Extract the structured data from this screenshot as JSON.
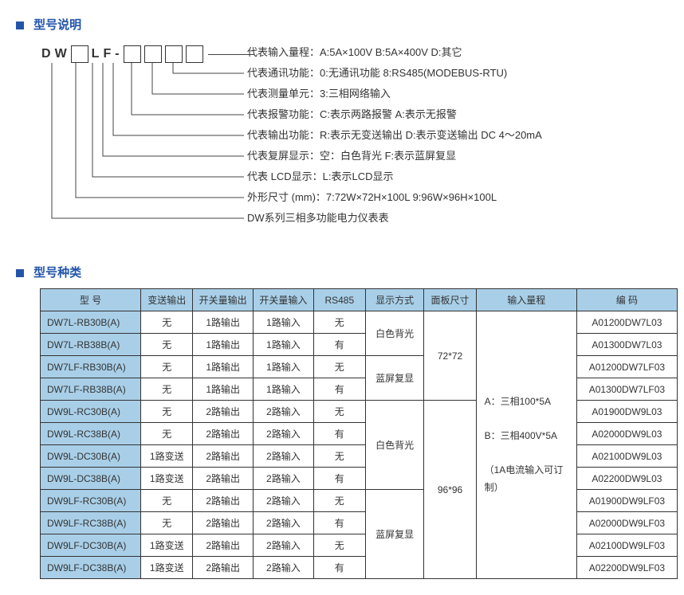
{
  "sections": {
    "explanation": "型号说明",
    "kinds": "型号种类"
  },
  "code_parts": {
    "p1": "D",
    "p2": "W",
    "p5": "L",
    "p6": "F",
    "dash": "-"
  },
  "desc": [
    "代表输入量程：A:5A×100V    B:5A×400V    D:其它",
    "代表通讯功能：0:无通讯功能    8:RS485(MODEBUS-RTU)",
    "代表测量单元：3:三相网络输入",
    "代表报警功能：C:表示两路报警    A:表示无报警",
    "代表输出功能：R:表示无变送输出    D:表示变送输出 DC 4～20mA",
    "代表复屏显示：空：白色背光    F:表示蓝屏复显",
    "代表 LCD显示：L:表示LCD显示",
    "外形尺寸 (mm)：7:72W×72H×100L    9:96W×96H×100L",
    "DW系列三相多功能电力仪表表"
  ],
  "headers": [
    "型    号",
    "变送输出",
    "开关量输出",
    "开关量输入",
    "RS485",
    "显示方式",
    "面板尺寸",
    "输入量程",
    "编    码"
  ],
  "range_lines": [
    "A：三相100*5A",
    "B：三相400V*5A",
    "（1A电流输入可订制）"
  ],
  "rows": [
    {
      "model": "DW7L-RB30B(A)",
      "trans": "无",
      "out": "1路输出",
      "in": "1路输入",
      "rs": "无",
      "code": "A01200DW7L03"
    },
    {
      "model": "DW7L-RB38B(A)",
      "trans": "无",
      "out": "1路输出",
      "in": "1路输入",
      "rs": "有",
      "code": "A01300DW7L03"
    },
    {
      "model": "DW7LF-RB30B(A)",
      "trans": "无",
      "out": "1路输出",
      "in": "1路输入",
      "rs": "无",
      "code": "A01200DW7LF03"
    },
    {
      "model": "DW7LF-RB38B(A)",
      "trans": "无",
      "out": "1路输出",
      "in": "1路输入",
      "rs": "有",
      "code": "A01300DW7LF03"
    },
    {
      "model": "DW9L-RC30B(A)",
      "trans": "无",
      "out": "2路输出",
      "in": "2路输入",
      "rs": "无",
      "code": "A01900DW9L03"
    },
    {
      "model": "DW9L-RC38B(A)",
      "trans": "无",
      "out": "2路输出",
      "in": "2路输入",
      "rs": "有",
      "code": "A02000DW9L03"
    },
    {
      "model": "DW9L-DC30B(A)",
      "trans": "1路变送",
      "out": "2路输出",
      "in": "2路输入",
      "rs": "无",
      "code": "A02100DW9L03"
    },
    {
      "model": "DW9L-DC38B(A)",
      "trans": "1路变送",
      "out": "2路输出",
      "in": "2路输入",
      "rs": "有",
      "code": "A02200DW9L03"
    },
    {
      "model": "DW9LF-RC30B(A)",
      "trans": "无",
      "out": "2路输出",
      "in": "2路输入",
      "rs": "无",
      "code": "A01900DW9LF03"
    },
    {
      "model": "DW9LF-RC38B(A)",
      "trans": "无",
      "out": "2路输出",
      "in": "2路输入",
      "rs": "有",
      "code": "A02000DW9LF03"
    },
    {
      "model": "DW9LF-DC30B(A)",
      "trans": "1路变送",
      "out": "2路输出",
      "in": "2路输入",
      "rs": "无",
      "code": "A02100DW9LF03"
    },
    {
      "model": "DW9LF-DC38B(A)",
      "trans": "1路变送",
      "out": "2路输出",
      "in": "2路输入",
      "rs": "有",
      "code": "A02200DW9LF03"
    }
  ],
  "disp": {
    "white": "白色背光",
    "blue": "蓝屏复显"
  },
  "panel": {
    "p72": "72*72",
    "p96": "96*96"
  },
  "colors": {
    "header_bg": "#a9cfe8",
    "section_title": "#2255aa",
    "border": "#333333"
  }
}
